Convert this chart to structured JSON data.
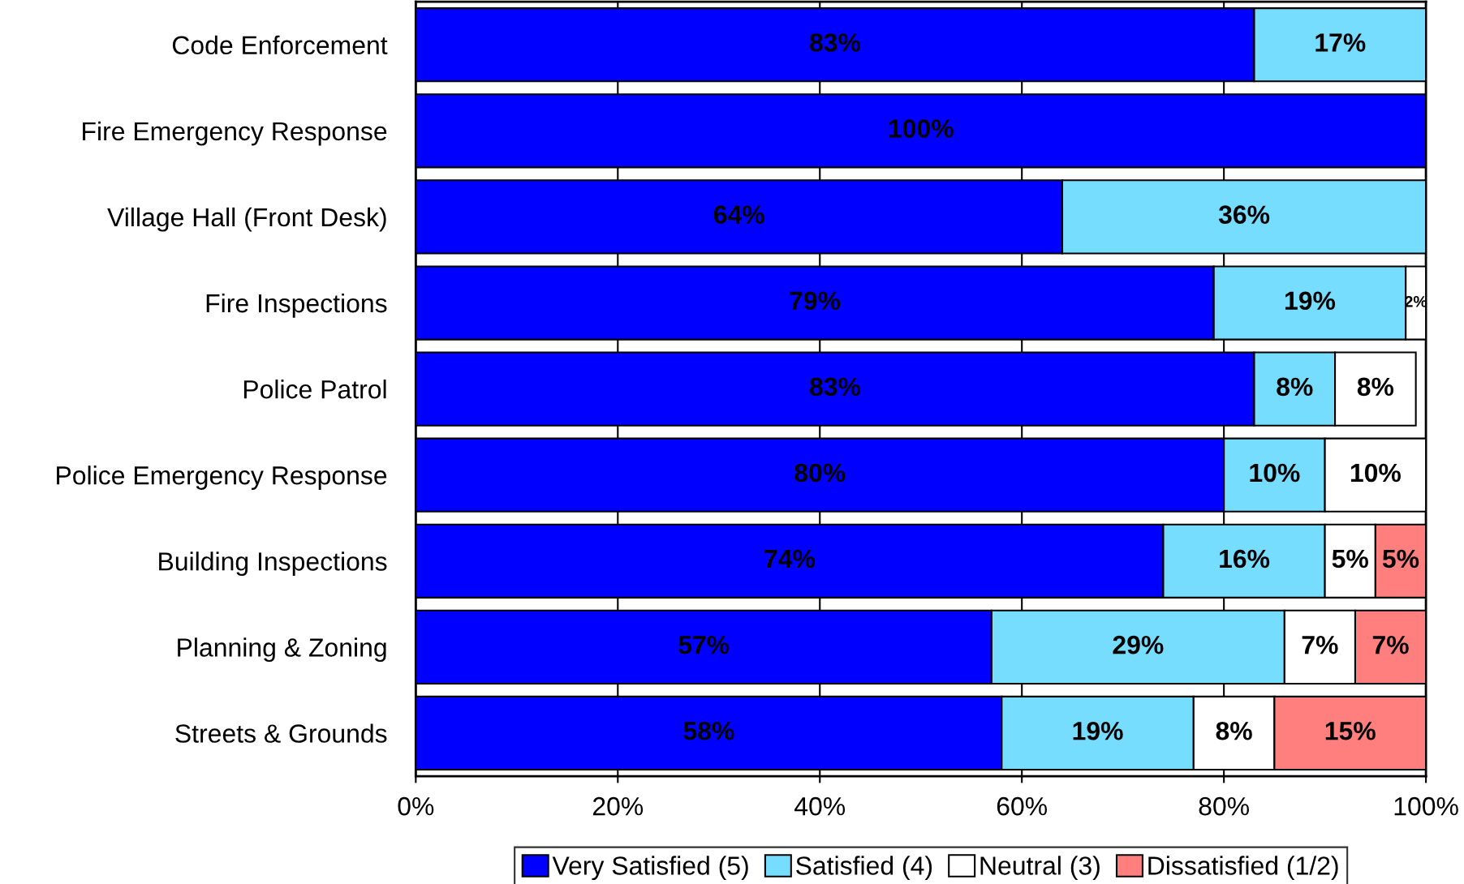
{
  "chart_data": {
    "type": "bar",
    "orientation": "horizontal",
    "stacked": true,
    "categories": [
      "Code Enforcement",
      "Fire Emergency Response",
      "Village Hall (Front Desk)",
      "Fire Inspections",
      "Police Patrol",
      "Police Emergency Response",
      "Building Inspections",
      "Planning & Zoning",
      "Streets & Grounds"
    ],
    "series": [
      {
        "name": "Very Satisfied (5)",
        "color": "#0000ff",
        "values": [
          83,
          100,
          64,
          79,
          83,
          80,
          74,
          57,
          58
        ],
        "value_labels": [
          "83%",
          "100%",
          "64%",
          "79%",
          "83%",
          "80%",
          "74%",
          "57%",
          "58%"
        ]
      },
      {
        "name": "Satisfied (4)",
        "color": "#77ddff",
        "values": [
          17,
          null,
          36,
          19,
          8,
          10,
          16,
          29,
          19
        ],
        "value_labels": [
          "17%",
          null,
          "36%",
          "19%",
          "8%",
          "10%",
          "16%",
          "29%",
          "19%"
        ]
      },
      {
        "name": "Neutral (3)",
        "color": "#ffffff",
        "values": [
          null,
          null,
          null,
          2,
          8,
          10,
          5,
          7,
          8
        ],
        "value_labels": [
          null,
          null,
          null,
          "2%",
          "8%",
          "10%",
          "5%",
          "7%",
          "8%"
        ]
      },
      {
        "name": "Dissatisfied (1/2)",
        "color": "#ff7f7f",
        "values": [
          null,
          null,
          null,
          null,
          null,
          null,
          5,
          7,
          15
        ],
        "value_labels": [
          null,
          null,
          null,
          null,
          null,
          null,
          "5%",
          "7%",
          "15%"
        ]
      }
    ],
    "xlim": [
      0,
      100
    ],
    "xticks": [
      {
        "value": 0,
        "label": "0%"
      },
      {
        "value": 20,
        "label": "20%"
      },
      {
        "value": 40,
        "label": "40%"
      },
      {
        "value": 60,
        "label": "60%"
      },
      {
        "value": 80,
        "label": "80%"
      },
      {
        "value": 100,
        "label": "100%"
      }
    ],
    "grid": "x",
    "legend": "bottom"
  }
}
